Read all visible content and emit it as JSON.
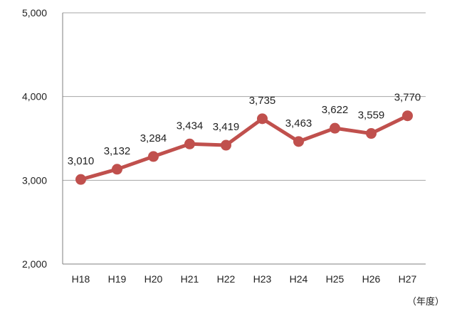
{
  "chart_data": {
    "type": "line",
    "categories": [
      "H18",
      "H19",
      "H20",
      "H21",
      "H22",
      "H23",
      "H24",
      "H25",
      "H26",
      "H27"
    ],
    "series": [
      {
        "values": [
          3010,
          3132,
          3284,
          3434,
          3419,
          3735,
          3463,
          3622,
          3559,
          3770
        ]
      }
    ],
    "data_labels": [
      "3,010",
      "3,132",
      "3,284",
      "3,434",
      "3,419",
      "3,735",
      "3,463",
      "3,622",
      "3,559",
      "3,770"
    ],
    "ylim": [
      2000,
      5000
    ],
    "yticks": [
      2000,
      3000,
      4000,
      5000
    ],
    "ytick_labels": [
      "2,000",
      "3,000",
      "4,000",
      "5,000"
    ],
    "x_unit": "（年度）",
    "grid": true,
    "line_color": "#c0504d"
  }
}
